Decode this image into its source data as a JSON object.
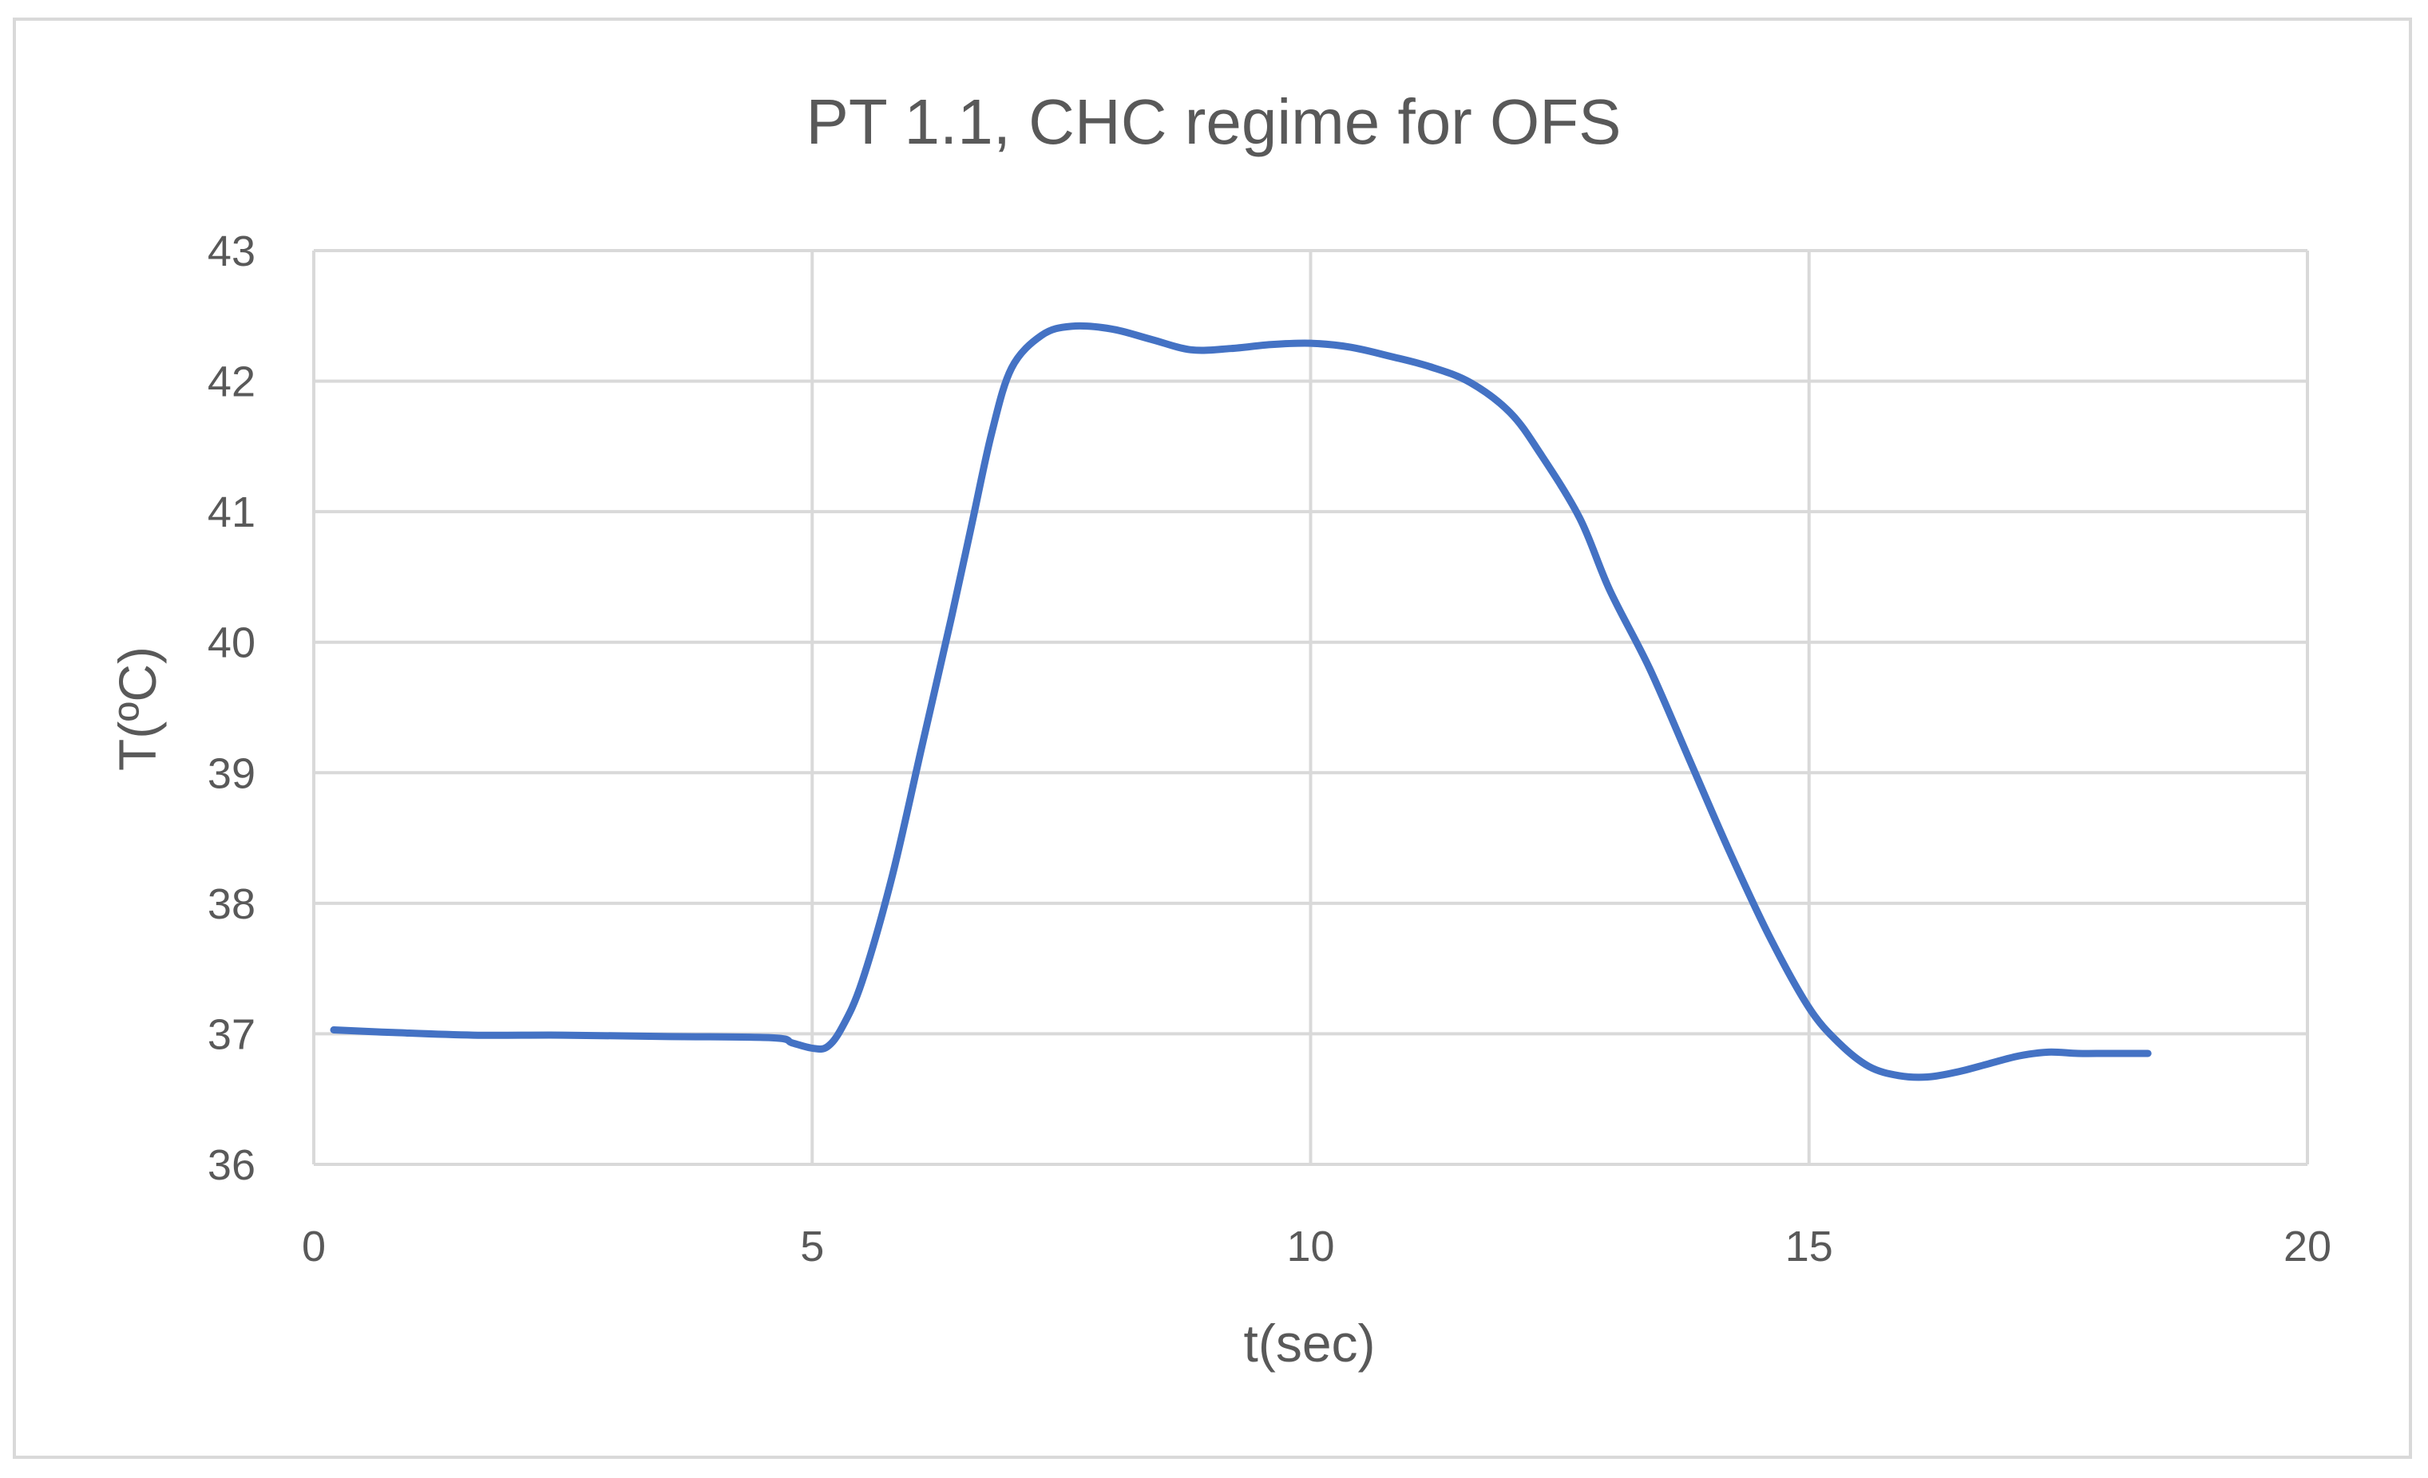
{
  "chart_data": {
    "type": "line",
    "title": "PT 1.1, CHC regime for OFS",
    "xlabel": "t(sec)",
    "ylabel": "T(ºC)",
    "xlim": [
      0,
      20
    ],
    "ylim": [
      36,
      43
    ],
    "xticks": [
      0,
      5,
      10,
      15,
      20
    ],
    "yticks": [
      36,
      37,
      38,
      39,
      40,
      41,
      42,
      43
    ],
    "grid": true,
    "legend": "none",
    "line_color": "#4472c4",
    "series": [
      {
        "x": [
          0.2,
          0.8,
          1.6,
          2.5,
          3.5,
          4.6,
          4.8,
          5.0,
          5.15,
          5.3,
          5.5,
          5.8,
          6.1,
          6.4,
          6.6,
          6.8,
          7.0,
          7.3,
          7.6,
          8.0,
          8.4,
          8.8,
          9.2,
          9.6,
          10.0,
          10.4,
          10.8,
          11.2,
          11.6,
          12.0,
          12.3,
          12.7,
          13.0,
          13.4,
          13.8,
          14.2,
          14.6,
          15.0,
          15.3,
          15.6,
          15.9,
          16.2,
          16.5,
          16.8,
          17.1,
          17.4,
          17.7,
          18.0,
          18.4
        ],
        "y": [
          37.03,
          37.01,
          36.99,
          36.99,
          36.98,
          36.97,
          36.93,
          36.89,
          36.9,
          37.05,
          37.4,
          38.2,
          39.2,
          40.2,
          40.9,
          41.6,
          42.1,
          42.35,
          42.42,
          42.4,
          42.32,
          42.24,
          42.25,
          42.28,
          42.29,
          42.26,
          42.19,
          42.11,
          41.99,
          41.76,
          41.45,
          40.95,
          40.4,
          39.8,
          39.1,
          38.4,
          37.75,
          37.2,
          36.93,
          36.75,
          36.68,
          36.67,
          36.71,
          36.77,
          36.83,
          36.86,
          36.85,
          36.85,
          36.85
        ]
      }
    ]
  }
}
